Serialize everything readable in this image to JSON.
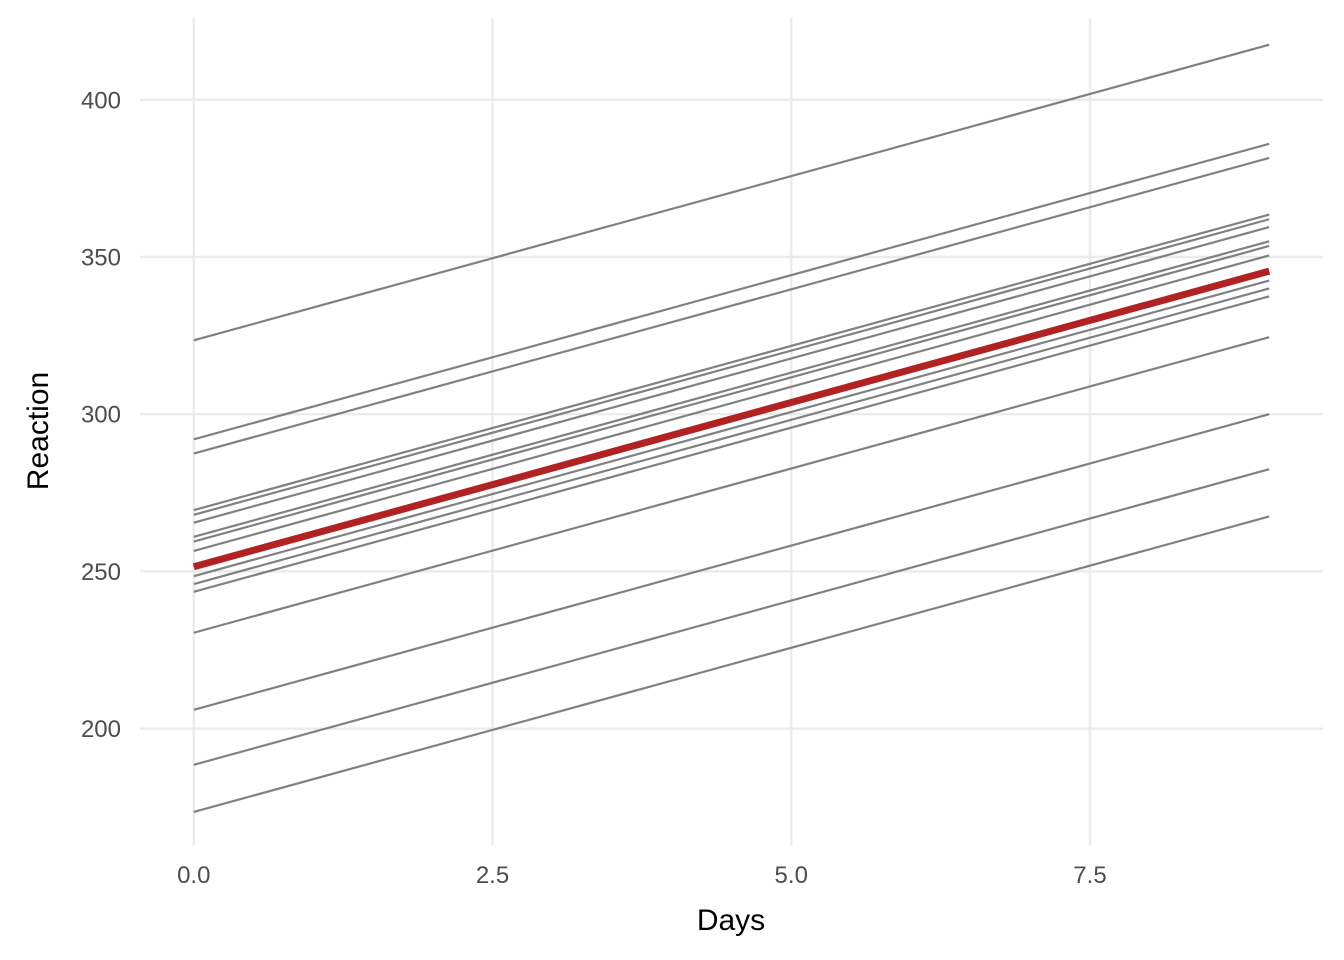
{
  "chart_data": {
    "type": "line",
    "xlabel": "Days",
    "ylabel": "Reaction",
    "xlim": [
      -0.45,
      9.45
    ],
    "ylim": [
      163,
      426
    ],
    "x_ticks": [
      0,
      2.5,
      5,
      7.5
    ],
    "x_tick_labels": [
      "0.0",
      "2.5",
      "5.0",
      "7.5"
    ],
    "y_ticks": [
      200,
      250,
      300,
      350,
      400
    ],
    "y_tick_labels": [
      "200",
      "250",
      "300",
      "350",
      "400"
    ],
    "grid": true,
    "legend": "none",
    "x": [
      0,
      9
    ],
    "series": [
      {
        "values": [
          323.5,
          417.5
        ]
      },
      {
        "values": [
          292.0,
          386.0
        ]
      },
      {
        "values": [
          287.5,
          381.5
        ]
      },
      {
        "values": [
          269.5,
          363.5
        ]
      },
      {
        "values": [
          268.0,
          362.0
        ]
      },
      {
        "values": [
          265.5,
          359.5
        ]
      },
      {
        "values": [
          261.0,
          355.0
        ]
      },
      {
        "values": [
          259.5,
          353.5
        ]
      },
      {
        "values": [
          256.5,
          350.5
        ]
      },
      {
        "values": [
          248.5,
          342.5
        ]
      },
      {
        "values": [
          246.0,
          340.0
        ]
      },
      {
        "values": [
          243.5,
          337.5
        ]
      },
      {
        "values": [
          230.5,
          324.5
        ]
      },
      {
        "values": [
          206.0,
          300.0
        ]
      },
      {
        "values": [
          188.5,
          282.5
        ]
      },
      {
        "values": [
          173.5,
          267.5
        ]
      }
    ],
    "fixed_effect": {
      "values": [
        251.5,
        345.5
      ]
    },
    "colors": {
      "subject_line": "#7a7a7a",
      "fixed_line": "#b22222",
      "grid": "#ebebeb"
    }
  }
}
